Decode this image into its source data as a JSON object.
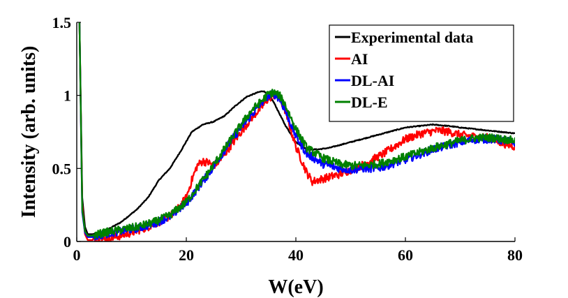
{
  "chart_data": {
    "type": "line",
    "title": "",
    "xlabel": "W(eV)",
    "ylabel": "Intensity (arb. units)",
    "xlim": [
      0,
      80
    ],
    "ylim": [
      0,
      1.5
    ],
    "xticks": [
      0,
      20,
      40,
      60,
      80
    ],
    "yticks": [
      0,
      0.5,
      1,
      1.5
    ],
    "ytick_labels": [
      "0",
      "0.5",
      "1",
      "1.5"
    ],
    "grid": false,
    "legend_position": "top-right",
    "series": [
      {
        "name": "Experimental data",
        "color": "#000000",
        "x": [
          0.5,
          1,
          1.5,
          2,
          3,
          5,
          8,
          11,
          13,
          15,
          17,
          19,
          21,
          23,
          25,
          27,
          29,
          31,
          33,
          34,
          35,
          36,
          38,
          40,
          42,
          44,
          46,
          50,
          55,
          60,
          65,
          68,
          70,
          75,
          80
        ],
        "y": [
          1.5,
          0.3,
          0.1,
          0.05,
          0.05,
          0.07,
          0.13,
          0.22,
          0.3,
          0.42,
          0.5,
          0.62,
          0.75,
          0.8,
          0.82,
          0.86,
          0.93,
          0.99,
          1.02,
          1.03,
          1.01,
          0.95,
          0.8,
          0.68,
          0.63,
          0.63,
          0.64,
          0.68,
          0.73,
          0.78,
          0.8,
          0.79,
          0.78,
          0.76,
          0.74
        ]
      },
      {
        "name": "AI",
        "color": "#ff0000",
        "x": [
          0.5,
          1,
          1.5,
          2,
          4,
          7,
          10,
          13,
          16,
          18,
          20,
          21,
          22,
          23,
          24,
          25,
          26,
          28,
          30,
          32,
          34,
          35,
          36,
          37,
          38,
          40,
          42,
          43,
          45,
          48,
          52,
          56,
          60,
          63,
          66,
          68,
          70,
          72,
          75,
          78,
          80
        ],
        "y": [
          1.5,
          0.25,
          0.05,
          0.01,
          0.01,
          0.03,
          0.06,
          0.1,
          0.15,
          0.2,
          0.3,
          0.42,
          0.52,
          0.55,
          0.54,
          0.52,
          0.55,
          0.65,
          0.75,
          0.85,
          0.93,
          0.98,
          1.0,
          0.98,
          0.9,
          0.65,
          0.47,
          0.41,
          0.43,
          0.46,
          0.52,
          0.6,
          0.7,
          0.74,
          0.76,
          0.75,
          0.73,
          0.72,
          0.71,
          0.67,
          0.65
        ]
      },
      {
        "name": "DL-AI",
        "color": "#0000ff",
        "x": [
          0.5,
          1,
          1.5,
          2,
          3,
          5,
          8,
          11,
          14,
          17,
          20,
          22,
          24,
          26,
          28,
          30,
          32,
          34,
          35,
          36,
          37,
          38,
          40,
          42,
          45,
          48,
          50,
          52,
          55,
          60,
          65,
          70,
          73,
          76,
          80
        ],
        "y": [
          1.5,
          0.2,
          0.06,
          0.03,
          0.03,
          0.05,
          0.07,
          0.09,
          0.12,
          0.17,
          0.26,
          0.36,
          0.46,
          0.57,
          0.68,
          0.78,
          0.87,
          0.96,
          1.0,
          1.01,
          0.98,
          0.9,
          0.72,
          0.6,
          0.53,
          0.5,
          0.49,
          0.5,
          0.5,
          0.56,
          0.63,
          0.68,
          0.7,
          0.7,
          0.68
        ]
      },
      {
        "name": "DL-E",
        "color": "#008000",
        "x": [
          0.5,
          1,
          1.5,
          2,
          3,
          5,
          8,
          11,
          14,
          17,
          20,
          22,
          24,
          26,
          28,
          30,
          32,
          34,
          35,
          36,
          37,
          38,
          40,
          42,
          45,
          48,
          50,
          52,
          55,
          60,
          65,
          70,
          73,
          76,
          80
        ],
        "y": [
          1.5,
          0.22,
          0.07,
          0.04,
          0.04,
          0.06,
          0.08,
          0.1,
          0.13,
          0.18,
          0.27,
          0.37,
          0.47,
          0.58,
          0.69,
          0.8,
          0.9,
          0.97,
          1.01,
          1.02,
          1.0,
          0.94,
          0.77,
          0.64,
          0.57,
          0.53,
          0.52,
          0.52,
          0.53,
          0.58,
          0.64,
          0.69,
          0.71,
          0.71,
          0.69
        ]
      }
    ]
  }
}
